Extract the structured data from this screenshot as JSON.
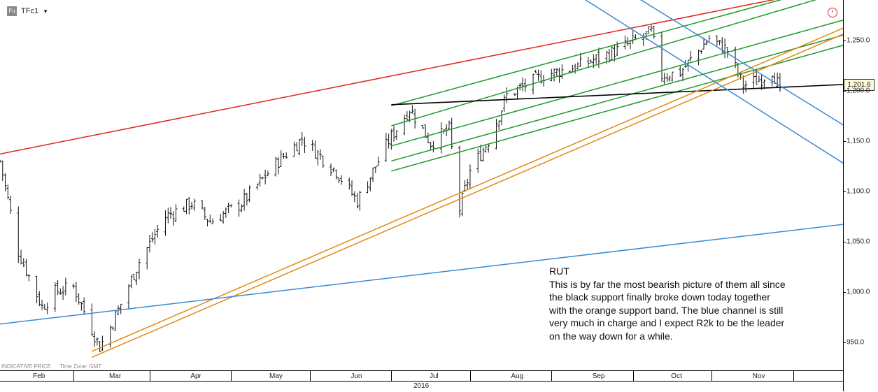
{
  "toolbar": {
    "icon_text": "Fu",
    "symbol": "TFc1",
    "caret": "▼",
    "clock_icon": "clock-icon"
  },
  "footer": {
    "price_type": "INDICATIVE PRICE",
    "timezone": "Time Zone: GMT"
  },
  "annotation": {
    "title": "RUT",
    "body": "This is by far the most bearish picture of them all since the black support finally broke down today together with the orange support band. The blue channel is still very much in charge and I expect R2k to be the leader on the way down for a while."
  },
  "price_tag": "1,201.6",
  "colors": {
    "candles": "#111111",
    "red": "#e0241b",
    "green": "#1f9a2a",
    "blue": "#3a8ad2",
    "orange": "#e08a12",
    "black": "#000000"
  },
  "chart_data": {
    "type": "bar",
    "subtype": "ohlc",
    "year_label": "2016",
    "x_axis": {
      "labels": [
        "Feb",
        "Mar",
        "Apr",
        "May",
        "Jun",
        "Jul",
        "Aug",
        "Sep",
        "Oct",
        "Nov"
      ]
    },
    "y_axis": {
      "labels": [
        "1,250.0",
        "1,200.0",
        "1,150.0",
        "1,100.0",
        "1,050.0",
        "1,000.0",
        "950.0"
      ],
      "ticks": [
        1250,
        1200,
        1150,
        1100,
        1050,
        1000,
        950
      ],
      "range": [
        922,
        1290
      ]
    },
    "last_price": 1201.6,
    "price_anchors": [
      [
        "2016-01-04",
        1130
      ],
      [
        "2016-01-11",
        1040
      ],
      [
        "2016-01-20",
        985
      ],
      [
        "2016-01-25",
        1000
      ],
      [
        "2016-02-01",
        1005
      ],
      [
        "2016-02-11",
        945
      ],
      [
        "2016-02-16",
        970
      ],
      [
        "2016-02-26",
        1030
      ],
      [
        "2016-03-07",
        1075
      ],
      [
        "2016-03-17",
        1088
      ],
      [
        "2016-03-24",
        1070
      ],
      [
        "2016-04-05",
        1088
      ],
      [
        "2016-04-19",
        1130
      ],
      [
        "2016-04-28",
        1152
      ],
      [
        "2016-05-11",
        1120
      ],
      [
        "2016-05-19",
        1090
      ],
      [
        "2016-05-31",
        1150
      ],
      [
        "2016-06-08",
        1182
      ],
      [
        "2016-06-16",
        1148
      ],
      [
        "2016-06-23",
        1162
      ],
      [
        "2016-06-27",
        1082
      ],
      [
        "2016-07-01",
        1120
      ],
      [
        "2016-07-08",
        1150
      ],
      [
        "2016-07-15",
        1195
      ],
      [
        "2016-07-29",
        1215
      ],
      [
        "2016-08-12",
        1225
      ],
      [
        "2016-08-26",
        1240
      ],
      [
        "2016-09-08",
        1258
      ],
      [
        "2016-09-12",
        1215
      ],
      [
        "2016-09-19",
        1218
      ],
      [
        "2016-09-30",
        1252
      ],
      [
        "2016-10-07",
        1240
      ],
      [
        "2016-10-13",
        1205
      ],
      [
        "2016-10-20",
        1212
      ],
      [
        "2016-10-24",
        1220
      ],
      [
        "2016-10-27",
        1201.6
      ]
    ],
    "trendlines": [
      {
        "color": "red",
        "points": [
          [
            "2016-01-04",
            1137
          ],
          [
            "2016-10-24",
            1290
          ]
        ]
      },
      {
        "color": "green",
        "points": [
          [
            "2016-06-01",
            1185
          ],
          [
            "2016-10-27",
            1290
          ]
        ]
      },
      {
        "color": "green",
        "points": [
          [
            "2016-06-01",
            1165
          ],
          [
            "2016-11-08",
            1289
          ]
        ]
      },
      {
        "color": "green",
        "points": [
          [
            "2016-06-01",
            1145
          ],
          [
            "2016-11-20",
            1270
          ]
        ]
      },
      {
        "color": "green",
        "points": [
          [
            "2016-06-01",
            1130
          ],
          [
            "2016-11-20",
            1255
          ]
        ]
      },
      {
        "color": "green",
        "points": [
          [
            "2016-06-01",
            1120
          ],
          [
            "2016-11-20",
            1245
          ]
        ]
      },
      {
        "color": "black",
        "points": [
          [
            "2016-06-01",
            1186
          ],
          [
            "2016-11-20",
            1206
          ]
        ]
      },
      {
        "color": "orange",
        "points": [
          [
            "2016-02-08",
            941
          ],
          [
            "2016-11-20",
            1262
          ]
        ]
      },
      {
        "color": "orange",
        "points": [
          [
            "2016-02-08",
            935
          ],
          [
            "2016-11-20",
            1256
          ]
        ]
      },
      {
        "color": "blue",
        "points": [
          [
            "2016-01-04",
            968
          ],
          [
            "2016-11-20",
            1067
          ]
        ]
      },
      {
        "color": "blue",
        "points": [
          [
            "2016-08-11",
            1295
          ],
          [
            "2016-11-20",
            1128
          ]
        ]
      },
      {
        "color": "blue",
        "points": [
          [
            "2016-09-01",
            1295
          ],
          [
            "2016-11-20",
            1166
          ]
        ]
      }
    ]
  }
}
